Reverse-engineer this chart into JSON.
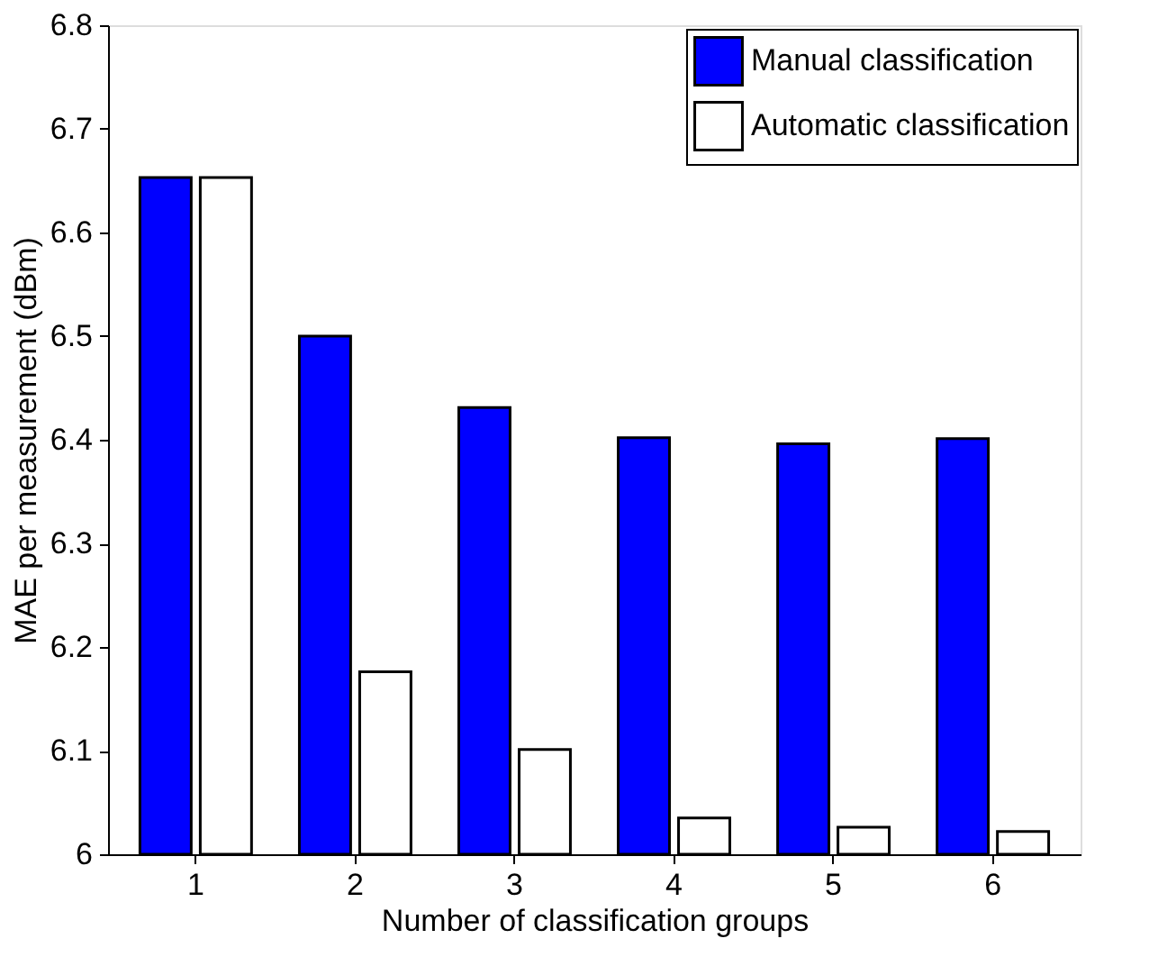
{
  "chart_data": {
    "type": "bar",
    "xlabel": "Number of classification groups",
    "ylabel": "MAE per measurement (dBm)",
    "categories": [
      "1",
      "2",
      "3",
      "4",
      "5",
      "6"
    ],
    "series": [
      {
        "name": "Manual classification",
        "color": "#0000ff",
        "values": [
          6.653,
          6.5,
          6.431,
          6.402,
          6.396,
          6.401
        ]
      },
      {
        "name": "Automatic classification",
        "color": "#ffffff",
        "values": [
          6.653,
          6.176,
          6.101,
          6.035,
          6.026,
          6.022
        ]
      }
    ],
    "ylim": [
      6,
      6.8
    ],
    "yticks": [
      6,
      6.1,
      6.2,
      6.3,
      6.4,
      6.5,
      6.6,
      6.7,
      6.8
    ],
    "grid": false,
    "legend": "top right"
  }
}
